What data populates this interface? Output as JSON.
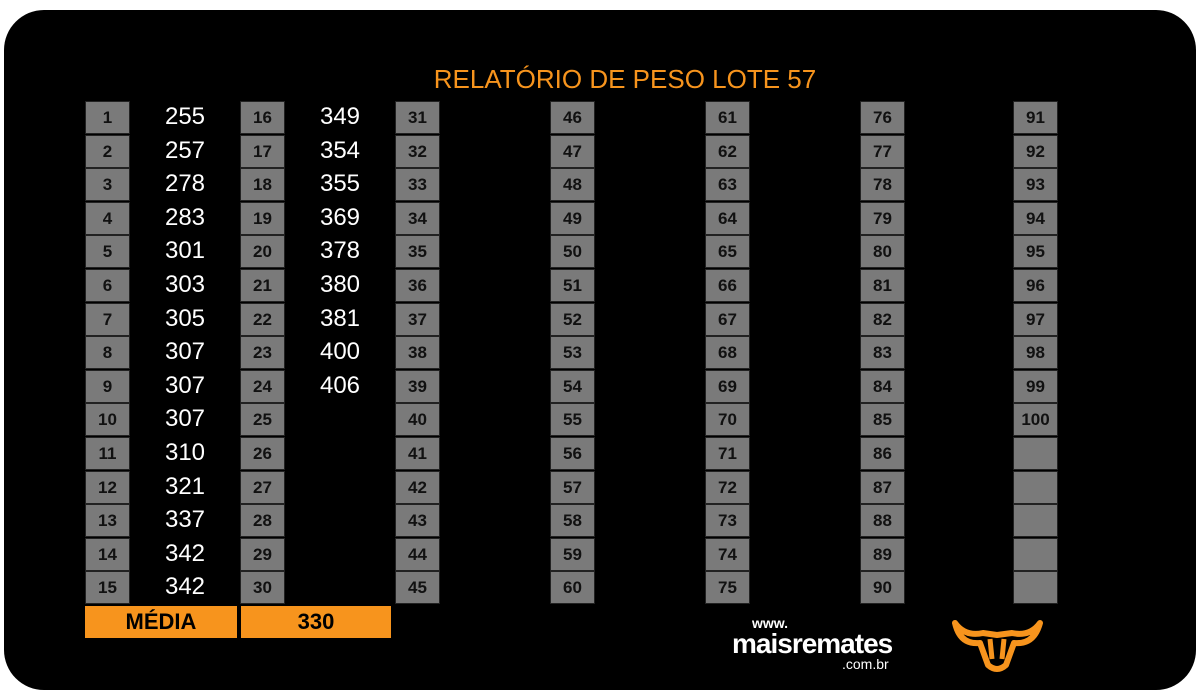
{
  "header": {
    "title": "RELATÓRIO DE PESO LOTE 57"
  },
  "table": {
    "columns": [
      {
        "numbers": [
          1,
          2,
          3,
          4,
          5,
          6,
          7,
          8,
          9,
          10,
          11,
          12,
          13,
          14,
          15
        ],
        "weights": [
          255,
          257,
          278,
          283,
          301,
          303,
          305,
          307,
          307,
          307,
          310,
          321,
          337,
          342,
          342
        ]
      },
      {
        "numbers": [
          16,
          17,
          18,
          19,
          20,
          21,
          22,
          23,
          24,
          25,
          26,
          27,
          28,
          29,
          30
        ],
        "weights": [
          349,
          354,
          355,
          369,
          378,
          380,
          381,
          400,
          406
        ]
      },
      {
        "numbers": [
          31,
          32,
          33,
          34,
          35,
          36,
          37,
          38,
          39,
          40,
          41,
          42,
          43,
          44,
          45
        ]
      },
      {
        "numbers": [
          46,
          47,
          48,
          49,
          50,
          51,
          52,
          53,
          54,
          55,
          56,
          57,
          58,
          59,
          60
        ]
      },
      {
        "numbers": [
          61,
          62,
          63,
          64,
          65,
          66,
          67,
          68,
          69,
          70,
          71,
          72,
          73,
          74,
          75
        ]
      },
      {
        "numbers": [
          76,
          77,
          78,
          79,
          80,
          81,
          82,
          83,
          84,
          85,
          86,
          87,
          88,
          89,
          90
        ]
      },
      {
        "numbers": [
          91,
          92,
          93,
          94,
          95,
          96,
          97,
          98,
          99,
          100
        ]
      }
    ]
  },
  "footer": {
    "average_label": "MÉDIA",
    "average": 330
  },
  "logo": {
    "prefix": "www.",
    "name": "maisremates",
    "suffix": ".com.br"
  }
}
